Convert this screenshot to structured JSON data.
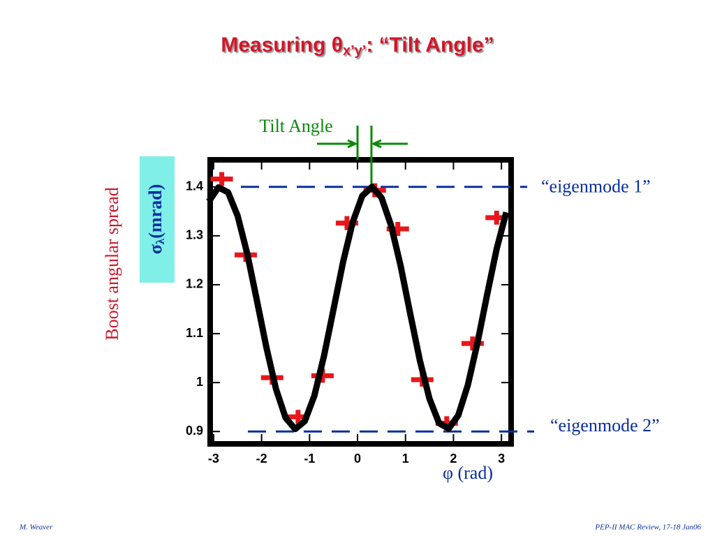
{
  "title": {
    "main": "Measuring θ",
    "sub": "x’y’",
    "rest": ": “Tilt Angle”"
  },
  "footer": {
    "left": "M. Weaver",
    "right": "PEP-II  MAC Review, 17-18 Jan06"
  },
  "chart_data": {
    "type": "scatter",
    "x_label": "φ (rad)",
    "y_label": {
      "symbol": "σ",
      "sub": "λ",
      "unit": "(mrad)"
    },
    "y_label_note": "Boost angular spread",
    "xlim": [
      -3.13,
      3.26
    ],
    "ylim": [
      0.869,
      1.461
    ],
    "xticks": [
      -3,
      -2,
      -1,
      0,
      1,
      2,
      3
    ],
    "yticks": [
      0.9,
      1,
      1.1,
      1.2,
      1.3,
      1.4
    ],
    "series": [
      {
        "type": "scatter",
        "color": "#e8161b",
        "x": [
          -2.83,
          -2.33,
          -1.78,
          -1.24,
          -0.73,
          -0.22,
          0.36,
          0.84,
          1.35,
          1.86,
          2.4,
          2.9
        ],
        "values": [
          1.416,
          1.261,
          1.01,
          0.93,
          1.014,
          1.326,
          1.393,
          1.314,
          1.006,
          0.917,
          1.08,
          1.337
        ]
      },
      {
        "type": "line",
        "color": "#000000",
        "x": [
          -3.1,
          -2.9,
          -2.7,
          -2.5,
          -2.3,
          -2.1,
          -1.9,
          -1.7,
          -1.5,
          -1.3,
          -1.1,
          -0.9,
          -0.7,
          -0.5,
          -0.3,
          -0.1,
          0.1,
          0.3,
          0.5,
          0.7,
          0.9,
          1.1,
          1.3,
          1.5,
          1.7,
          1.9,
          2.1,
          2.3,
          2.5,
          2.7,
          2.9,
          3.1
        ],
        "values": [
          1.37,
          1.399,
          1.389,
          1.341,
          1.264,
          1.169,
          1.072,
          0.987,
          0.928,
          0.905,
          0.921,
          0.973,
          1.054,
          1.15,
          1.247,
          1.328,
          1.382,
          1.4,
          1.378,
          1.321,
          1.238,
          1.14,
          1.045,
          0.967,
          0.917,
          0.906,
          0.933,
          0.995,
          1.081,
          1.179,
          1.273,
          1.348
        ]
      }
    ],
    "reference_lines": [
      {
        "value": 1.4,
        "label": "“eigenmode 1”"
      },
      {
        "value": 0.9,
        "label": "“eigenmode 2”"
      }
    ],
    "reference_color": "#0a2ea0",
    "tilt_angle": {
      "label": "Tilt Angle",
      "x": [
        0,
        0.29
      ],
      "color": "#0a8a0a"
    }
  }
}
